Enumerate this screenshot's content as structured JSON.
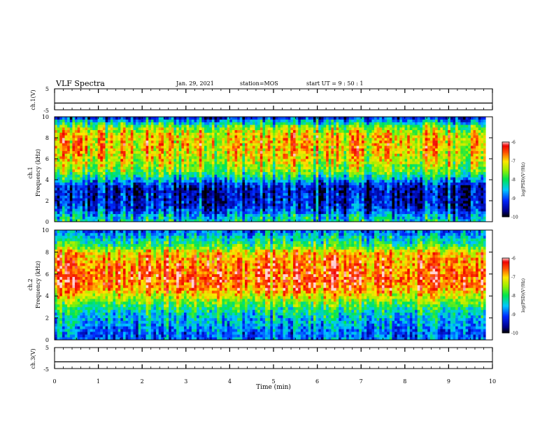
{
  "header": {
    "title": "VLF Spectra",
    "date": "Jan. 29, 2021",
    "station": "station=MOS",
    "start": "start  UT =   9 : 50 : 1"
  },
  "chart_data": [
    {
      "type": "line",
      "name": "ch1-waveform",
      "ylabel": "ch.1(V)",
      "ylim": [
        -5,
        5
      ],
      "yticks": [
        "5",
        "-5"
      ],
      "x": [
        0,
        10
      ],
      "values": [
        -1.8,
        -1.8
      ]
    },
    {
      "type": "heatmap",
      "name": "ch1-spectrogram",
      "ylabel": "ch.1\nFrequency (kHz)",
      "ylim": [
        0,
        10
      ],
      "yticks": [
        "0",
        "2",
        "4",
        "6",
        "8",
        "10"
      ],
      "xlim": [
        0,
        9.85
      ],
      "colorbar": {
        "label": "log(PSD)(V²/Hz)",
        "range": [
          -10,
          -6
        ],
        "ticks": [
          "-6",
          "-7",
          "-8",
          "-9",
          "-10"
        ]
      },
      "bands_khz": [
        0,
        0.5,
        1,
        1.5,
        2,
        2.5,
        3,
        3.5,
        4,
        4.5,
        5,
        5.5,
        6,
        6.5,
        7,
        7.5,
        8,
        8.5,
        9,
        9.5,
        10
      ],
      "log_psd_profile": [
        -8.3,
        -8.5,
        -9.0,
        -9.3,
        -9.4,
        -9.4,
        -9.5,
        -9.3,
        -8.6,
        -8.0,
        -7.6,
        -7.4,
        -7.2,
        -7.1,
        -7.0,
        -7.0,
        -7.0,
        -7.2,
        -7.6,
        -8.4,
        -9.4
      ]
    },
    {
      "type": "heatmap",
      "name": "ch2-spectrogram",
      "ylabel": "ch.2\nFrequency (kHz)",
      "ylim": [
        0,
        10
      ],
      "yticks": [
        "0",
        "2",
        "4",
        "6",
        "8",
        "10"
      ],
      "xlim": [
        0,
        9.85
      ],
      "colorbar": {
        "label": "log(PSD)(V²/Hz)",
        "range": [
          -10,
          -6
        ],
        "ticks": [
          "-6",
          "-7",
          "-8",
          "-9",
          "-10"
        ]
      },
      "bands_khz": [
        0,
        0.5,
        1,
        1.5,
        2,
        2.5,
        3,
        3.5,
        4,
        4.5,
        5,
        5.5,
        6,
        6.5,
        7,
        7.5,
        8,
        8.5,
        9,
        9.5,
        10
      ],
      "log_psd_profile": [
        -8.8,
        -9.0,
        -8.8,
        -8.6,
        -8.5,
        -8.3,
        -8.0,
        -7.6,
        -7.2,
        -6.8,
        -6.6,
        -6.5,
        -6.5,
        -6.6,
        -6.7,
        -6.8,
        -7.0,
        -7.8,
        -8.2,
        -8.5,
        -9.0
      ]
    },
    {
      "type": "line",
      "name": "ch3-waveform",
      "ylabel": "ch.3(V)",
      "ylim": [
        -5,
        5
      ],
      "yticks": [
        "5",
        "-5"
      ],
      "x": [
        0,
        10
      ],
      "values": [
        -1.8,
        -1.8
      ]
    }
  ],
  "xaxis": {
    "label": "Time  (min)",
    "range": [
      0,
      10
    ],
    "ticks": [
      "0",
      "1",
      "2",
      "3",
      "4",
      "5",
      "6",
      "7",
      "8",
      "9",
      "10"
    ]
  }
}
